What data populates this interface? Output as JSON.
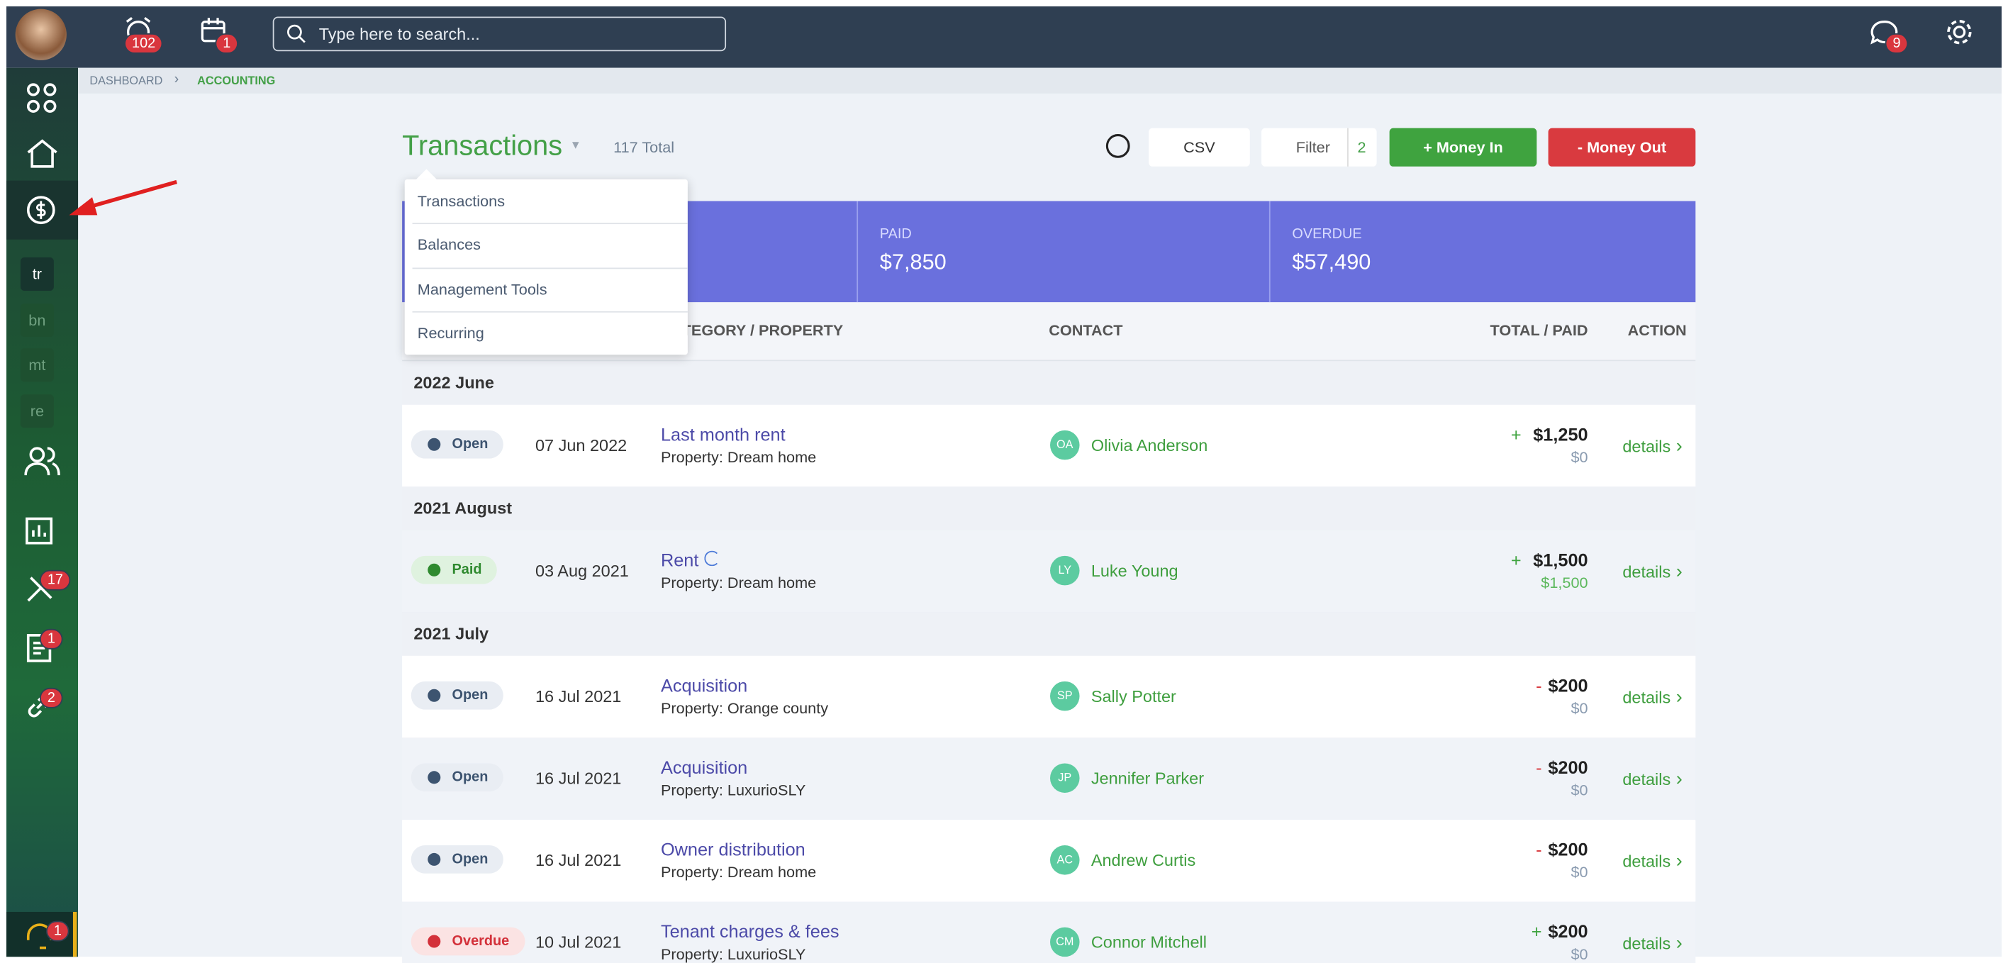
{
  "topbar": {
    "badges": [
      "102",
      "1"
    ],
    "search_placeholder": "Type here to search...",
    "chat_badge": "9"
  },
  "sidebar": {
    "subitems": [
      "tr",
      "bn",
      "mt",
      "re"
    ],
    "badges": [
      "17",
      "1",
      "2"
    ],
    "help_badge": "1"
  },
  "breadcrumb": [
    "DASHBOARD",
    "ACCOUNTING"
  ],
  "header": {
    "title": "Transactions",
    "total": "117 Total",
    "csv": "CSV",
    "filter": "Filter",
    "filter_count": "2",
    "money_in": "+ Money In",
    "money_out": "- Money Out"
  },
  "dropdown": [
    "Transactions",
    "Balances",
    "Management Tools",
    "Recurring"
  ],
  "summary": [
    {
      "label": "PAID",
      "value": "$7,850"
    },
    {
      "label": "OVERDUE",
      "value": "$57,490"
    }
  ],
  "table": {
    "columns": [
      "CATEGORY / PROPERTY",
      "CONTACT",
      "TOTAL / PAID",
      "ACTION"
    ],
    "action_label": "details",
    "groups": [
      {
        "label": "2022 June",
        "rows": [
          {
            "status": "Open",
            "date": "07 Jun 2022",
            "title": "Last month rent",
            "property": "Property: Dream home",
            "initials": "OA",
            "contact": "Olivia Anderson",
            "sign": "+",
            "total": "$1,250",
            "paid": "$0"
          }
        ]
      },
      {
        "label": "2021 August",
        "rows": [
          {
            "status": "Paid",
            "date": "03 Aug 2021",
            "title": "Rent",
            "property": "Property: Dream home",
            "initials": "LY",
            "contact": "Luke Young",
            "sign": "+",
            "total": "$1,500",
            "paid": "$1,500"
          }
        ]
      },
      {
        "label": "2021 July",
        "rows": [
          {
            "status": "Open",
            "date": "16 Jul 2021",
            "title": "Acquisition",
            "property": "Property: Orange county",
            "initials": "SP",
            "contact": "Sally Potter",
            "sign": "-",
            "total": "$200",
            "paid": "$0"
          },
          {
            "status": "Open",
            "date": "16 Jul 2021",
            "title": "Acquisition",
            "property": "Property: LuxurioSLY",
            "initials": "JP",
            "contact": "Jennifer Parker",
            "sign": "-",
            "total": "$200",
            "paid": "$0"
          },
          {
            "status": "Open",
            "date": "16 Jul 2021",
            "title": "Owner distribution",
            "property": "Property: Dream home",
            "initials": "AC",
            "contact": "Andrew Curtis",
            "sign": "-",
            "total": "$200",
            "paid": "$0"
          },
          {
            "status": "Overdue",
            "date": "10 Jul 2021",
            "title": "Tenant charges & fees",
            "property": "Property: LuxurioSLY",
            "initials": "CM",
            "contact": "Connor Mitchell",
            "sign": "+",
            "total": "$200",
            "paid": "$0"
          }
        ]
      }
    ]
  }
}
